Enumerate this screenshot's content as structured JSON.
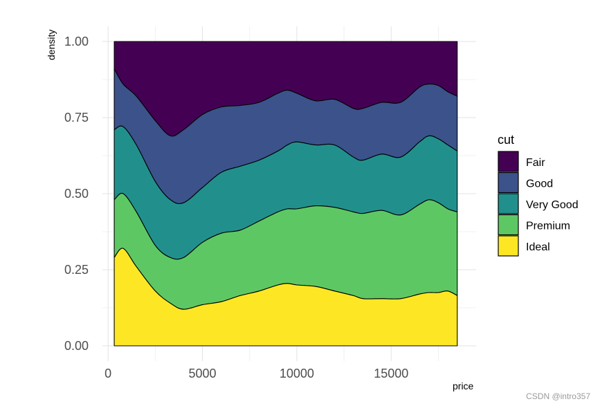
{
  "chart_data": {
    "type": "area",
    "subtype": "stacked-filled-density",
    "xlabel": "price",
    "ylabel": "density",
    "xlim": [
      -300,
      19500
    ],
    "ylim": [
      -0.05,
      1.05
    ],
    "x_ticks": [
      0,
      5000,
      10000,
      15000
    ],
    "x_tick_labels": [
      "0",
      "5000",
      "10000",
      "15000"
    ],
    "y_ticks": [
      0,
      0.25,
      0.5,
      0.75,
      1.0
    ],
    "y_tick_labels": [
      "0.00",
      "0.25",
      "0.50",
      "0.75",
      "1.00"
    ],
    "grid": true,
    "legend": {
      "title": "cut",
      "position": "right",
      "entries": [
        "Fair",
        "Good",
        "Very Good",
        "Premium",
        "Ideal"
      ]
    },
    "x": [
      326,
      800,
      1500,
      2500,
      3300,
      4000,
      5000,
      6000,
      7000,
      8000,
      9000,
      9500,
      10000,
      11000,
      12000,
      13000,
      13500,
      14500,
      15500,
      16500,
      17000,
      17500,
      18000,
      18500
    ],
    "series": [
      {
        "name": "Fair",
        "color": "#440154",
        "values": [
          0.91,
          0.86,
          0.82,
          0.74,
          0.69,
          0.71,
          0.76,
          0.785,
          0.79,
          0.8,
          0.83,
          0.84,
          0.83,
          0.805,
          0.81,
          0.78,
          0.78,
          0.8,
          0.8,
          0.85,
          0.86,
          0.855,
          0.835,
          0.82
        ]
      },
      {
        "name": "Good",
        "color": "#3b528b",
        "values": [
          0.71,
          0.72,
          0.66,
          0.54,
          0.48,
          0.47,
          0.52,
          0.57,
          0.59,
          0.61,
          0.64,
          0.66,
          0.67,
          0.66,
          0.66,
          0.62,
          0.61,
          0.63,
          0.62,
          0.67,
          0.69,
          0.68,
          0.66,
          0.64
        ]
      },
      {
        "name": "Very Good",
        "color": "#21908d",
        "values": [
          0.48,
          0.5,
          0.44,
          0.33,
          0.29,
          0.29,
          0.34,
          0.37,
          0.38,
          0.41,
          0.44,
          0.45,
          0.45,
          0.46,
          0.455,
          0.44,
          0.435,
          0.445,
          0.43,
          0.465,
          0.48,
          0.47,
          0.45,
          0.44
        ]
      },
      {
        "name": "Premium",
        "color": "#5dc863",
        "values": [
          0.29,
          0.32,
          0.26,
          0.18,
          0.14,
          0.12,
          0.135,
          0.145,
          0.165,
          0.18,
          0.2,
          0.205,
          0.2,
          0.195,
          0.18,
          0.165,
          0.155,
          0.155,
          0.155,
          0.17,
          0.175,
          0.175,
          0.18,
          0.165
        ]
      },
      {
        "name": "Ideal",
        "color": "#fde725",
        "values": [
          0,
          0,
          0,
          0,
          0,
          0,
          0,
          0,
          0,
          0,
          0,
          0,
          0,
          0,
          0,
          0,
          0,
          0,
          0,
          0,
          0,
          0,
          0,
          0
        ]
      }
    ],
    "top_boundary": 1.0
  },
  "watermark": "CSDN @intro357"
}
